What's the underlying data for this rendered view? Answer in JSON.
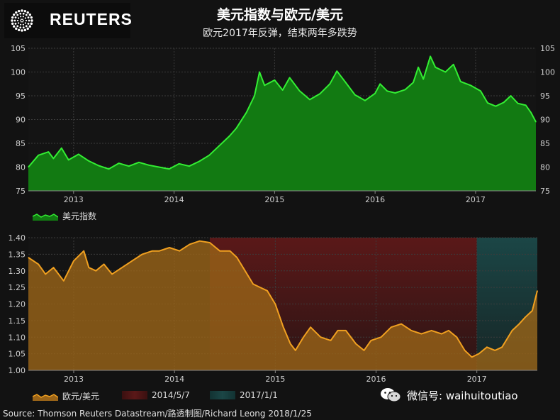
{
  "header": {
    "logo_text": "REUTERS",
    "title": "美元指数与欧元/美元",
    "subtitle": "欧元2017年反弹，结束两年多跌势"
  },
  "colors": {
    "usd_line": "#33ee33",
    "usd_fill": "#127a12",
    "eur_line": "#f0a020",
    "eur_fill": "#9a6418",
    "band1": "#5a1818",
    "band2": "#1b4646"
  },
  "chart_data": [
    {
      "type": "area",
      "name": "usd-index",
      "ylim": [
        75,
        105
      ],
      "yticks": [
        "75",
        "80",
        "85",
        "90",
        "95",
        "100",
        "105"
      ],
      "xlim": [
        2012.55,
        2017.6
      ],
      "xticks": [
        {
          "label": "2013",
          "x": 2013.0
        },
        {
          "label": "2014",
          "x": 2014.0
        },
        {
          "label": "2015",
          "x": 2015.0
        },
        {
          "label": "2016",
          "x": 2016.0
        },
        {
          "label": "2017",
          "x": 2017.0
        }
      ],
      "series": [
        {
          "name": "美元指数",
          "points": [
            [
              2012.55,
              80.0
            ],
            [
              2012.65,
              82.5
            ],
            [
              2012.75,
              83.2
            ],
            [
              2012.8,
              81.8
            ],
            [
              2012.88,
              84.0
            ],
            [
              2012.95,
              81.5
            ],
            [
              2013.05,
              82.7
            ],
            [
              2013.15,
              81.3
            ],
            [
              2013.25,
              80.3
            ],
            [
              2013.35,
              79.6
            ],
            [
              2013.45,
              80.8
            ],
            [
              2013.55,
              80.2
            ],
            [
              2013.65,
              81.0
            ],
            [
              2013.75,
              80.4
            ],
            [
              2013.85,
              80.0
            ],
            [
              2013.95,
              79.6
            ],
            [
              2014.05,
              80.7
            ],
            [
              2014.15,
              80.2
            ],
            [
              2014.25,
              81.2
            ],
            [
              2014.35,
              82.5
            ],
            [
              2014.45,
              84.5
            ],
            [
              2014.55,
              86.5
            ],
            [
              2014.62,
              88.2
            ],
            [
              2014.72,
              91.5
            ],
            [
              2014.8,
              95.0
            ],
            [
              2014.85,
              100.0
            ],
            [
              2014.9,
              97.2
            ],
            [
              2015.0,
              98.3
            ],
            [
              2015.08,
              96.2
            ],
            [
              2015.15,
              98.8
            ],
            [
              2015.25,
              96.0
            ],
            [
              2015.35,
              94.2
            ],
            [
              2015.45,
              95.4
            ],
            [
              2015.55,
              97.5
            ],
            [
              2015.62,
              100.2
            ],
            [
              2015.7,
              98.0
            ],
            [
              2015.8,
              95.2
            ],
            [
              2015.9,
              94.0
            ],
            [
              2016.0,
              95.5
            ],
            [
              2016.05,
              97.5
            ],
            [
              2016.12,
              96.0
            ],
            [
              2016.2,
              95.6
            ],
            [
              2016.3,
              96.3
            ],
            [
              2016.38,
              97.8
            ],
            [
              2016.43,
              101.0
            ],
            [
              2016.48,
              98.5
            ],
            [
              2016.55,
              103.3
            ],
            [
              2016.6,
              101.0
            ],
            [
              2016.7,
              100.0
            ],
            [
              2016.78,
              101.6
            ],
            [
              2016.85,
              98.0
            ],
            [
              2016.95,
              97.2
            ],
            [
              2017.05,
              96.0
            ],
            [
              2017.12,
              93.5
            ],
            [
              2017.2,
              92.8
            ],
            [
              2017.28,
              93.6
            ],
            [
              2017.35,
              95.0
            ],
            [
              2017.42,
              93.4
            ],
            [
              2017.5,
              93.0
            ],
            [
              2017.55,
              91.5
            ],
            [
              2017.6,
              89.5
            ]
          ]
        }
      ],
      "legend": [
        {
          "label": "美元指数"
        }
      ]
    },
    {
      "type": "area",
      "name": "eur-usd",
      "ylim": [
        1.0,
        1.4
      ],
      "yticks": [
        "1.00",
        "1.05",
        "1.10",
        "1.15",
        "1.20",
        "1.25",
        "1.30",
        "1.35",
        "1.40"
      ],
      "xlim": [
        2012.55,
        2017.6
      ],
      "xticks": [
        {
          "label": "2013",
          "x": 2013.0
        },
        {
          "label": "2014",
          "x": 2014.0
        },
        {
          "label": "2015",
          "x": 2015.0
        },
        {
          "label": "2016",
          "x": 2016.0
        },
        {
          "label": "2017",
          "x": 2017.0
        }
      ],
      "bands": [
        {
          "label": "2014/5/7",
          "x": [
            2014.35,
            2017.0
          ]
        },
        {
          "label": "2017/1/1",
          "x": [
            2017.0,
            2017.6
          ]
        }
      ],
      "series": [
        {
          "name": "欧元/美元",
          "points": [
            [
              2012.55,
              1.34
            ],
            [
              2012.65,
              1.32
            ],
            [
              2012.72,
              1.29
            ],
            [
              2012.8,
              1.31
            ],
            [
              2012.9,
              1.27
            ],
            [
              2013.0,
              1.33
            ],
            [
              2013.1,
              1.36
            ],
            [
              2013.15,
              1.31
            ],
            [
              2013.22,
              1.3
            ],
            [
              2013.3,
              1.32
            ],
            [
              2013.38,
              1.29
            ],
            [
              2013.48,
              1.31
            ],
            [
              2013.58,
              1.33
            ],
            [
              2013.68,
              1.35
            ],
            [
              2013.78,
              1.36
            ],
            [
              2013.85,
              1.36
            ],
            [
              2013.95,
              1.37
            ],
            [
              2014.05,
              1.36
            ],
            [
              2014.15,
              1.38
            ],
            [
              2014.25,
              1.39
            ],
            [
              2014.35,
              1.385
            ],
            [
              2014.45,
              1.36
            ],
            [
              2014.55,
              1.36
            ],
            [
              2014.62,
              1.34
            ],
            [
              2014.7,
              1.3
            ],
            [
              2014.78,
              1.26
            ],
            [
              2014.85,
              1.25
            ],
            [
              2014.92,
              1.24
            ],
            [
              2015.0,
              1.2
            ],
            [
              2015.08,
              1.13
            ],
            [
              2015.15,
              1.08
            ],
            [
              2015.2,
              1.06
            ],
            [
              2015.28,
              1.1
            ],
            [
              2015.35,
              1.13
            ],
            [
              2015.45,
              1.1
            ],
            [
              2015.55,
              1.09
            ],
            [
              2015.62,
              1.12
            ],
            [
              2015.7,
              1.12
            ],
            [
              2015.8,
              1.08
            ],
            [
              2015.88,
              1.06
            ],
            [
              2015.95,
              1.09
            ],
            [
              2016.05,
              1.1
            ],
            [
              2016.15,
              1.13
            ],
            [
              2016.25,
              1.14
            ],
            [
              2016.35,
              1.12
            ],
            [
              2016.45,
              1.11
            ],
            [
              2016.55,
              1.12
            ],
            [
              2016.65,
              1.11
            ],
            [
              2016.72,
              1.12
            ],
            [
              2016.8,
              1.1
            ],
            [
              2016.88,
              1.06
            ],
            [
              2016.95,
              1.04
            ],
            [
              2017.02,
              1.05
            ],
            [
              2017.1,
              1.07
            ],
            [
              2017.18,
              1.06
            ],
            [
              2017.25,
              1.07
            ],
            [
              2017.35,
              1.12
            ],
            [
              2017.42,
              1.14
            ],
            [
              2017.48,
              1.16
            ],
            [
              2017.55,
              1.18
            ],
            [
              2017.6,
              1.24
            ]
          ]
        }
      ],
      "legend": [
        {
          "label": "欧元/美元"
        },
        {
          "label": "2014/5/7"
        },
        {
          "label": "2017/1/1"
        }
      ]
    }
  ],
  "footer": {
    "watermark": "微信号: waihuitoutiao",
    "source": "Source: Thomson Reuters Datastream/路透制图/Richard Leong 2018/1/25"
  }
}
